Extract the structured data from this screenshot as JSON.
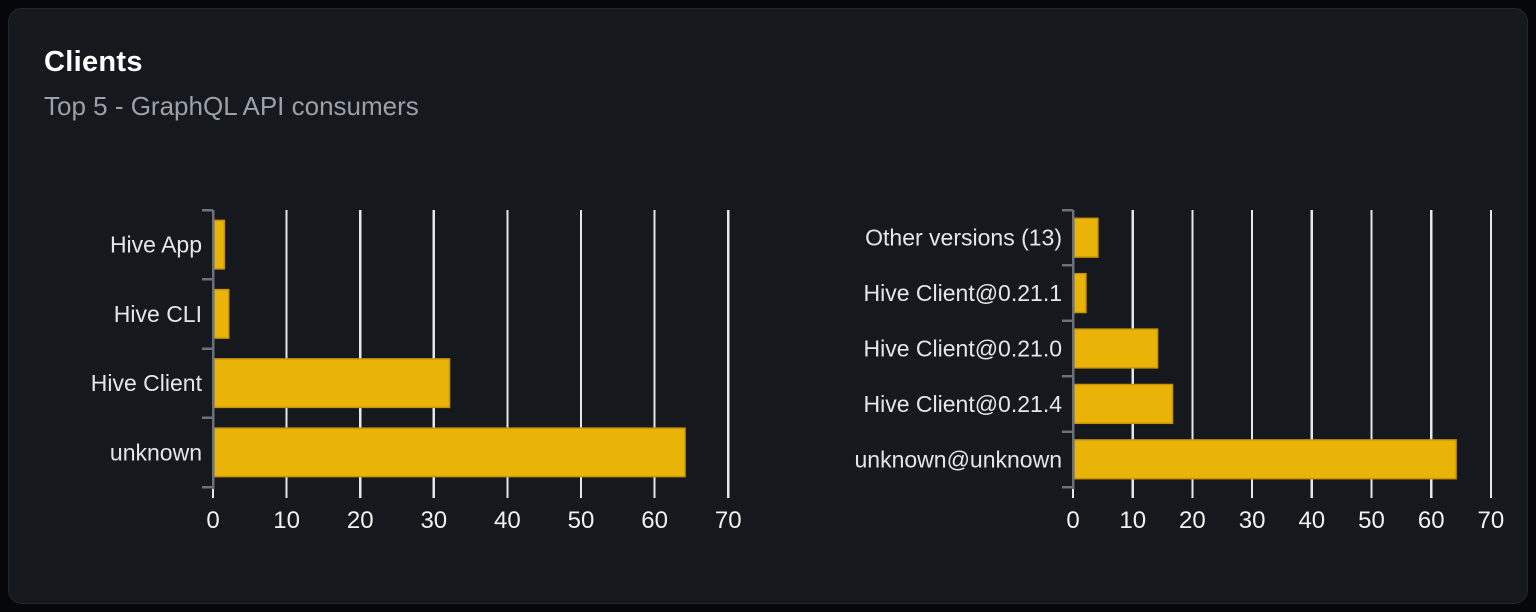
{
  "card": {
    "title": "Clients",
    "subtitle": "Top 5 - GraphQL API consumers"
  },
  "colors": {
    "page_background": "#06070a",
    "card_background": "#15181c",
    "card_border": "#24272e",
    "title_text": "#ffffff",
    "subtitle_text": "#9aa1a9",
    "bar_fill": "#eab308",
    "bar_border": "#c9940a",
    "gridline": "#e4e7ec",
    "axis_line": "#6c7078",
    "tick_label_text": "#f0f1f3",
    "category_label_text": "#e4e7ea"
  },
  "chart_data": [
    {
      "type": "bar",
      "orientation": "horizontal",
      "name": "clients",
      "categories": [
        "Hive App",
        "Hive CLI",
        "Hive Client",
        "unknown"
      ],
      "values": [
        1.4,
        2,
        32,
        64
      ],
      "xlim": [
        0,
        70
      ],
      "xticks": [
        0,
        10,
        20,
        30,
        40,
        50,
        60,
        70
      ],
      "grid": true,
      "legend": false
    },
    {
      "type": "bar",
      "orientation": "horizontal",
      "name": "client-versions",
      "categories": [
        "Other versions (13)",
        "Hive Client@0.21.1",
        "Hive Client@0.21.0",
        "Hive Client@0.21.4",
        "unknown@unknown"
      ],
      "values": [
        4,
        2,
        14,
        16.5,
        64
      ],
      "xlim": [
        0,
        70
      ],
      "xticks": [
        0,
        10,
        20,
        30,
        40,
        50,
        60,
        70
      ],
      "grid": true,
      "legend": false
    }
  ]
}
